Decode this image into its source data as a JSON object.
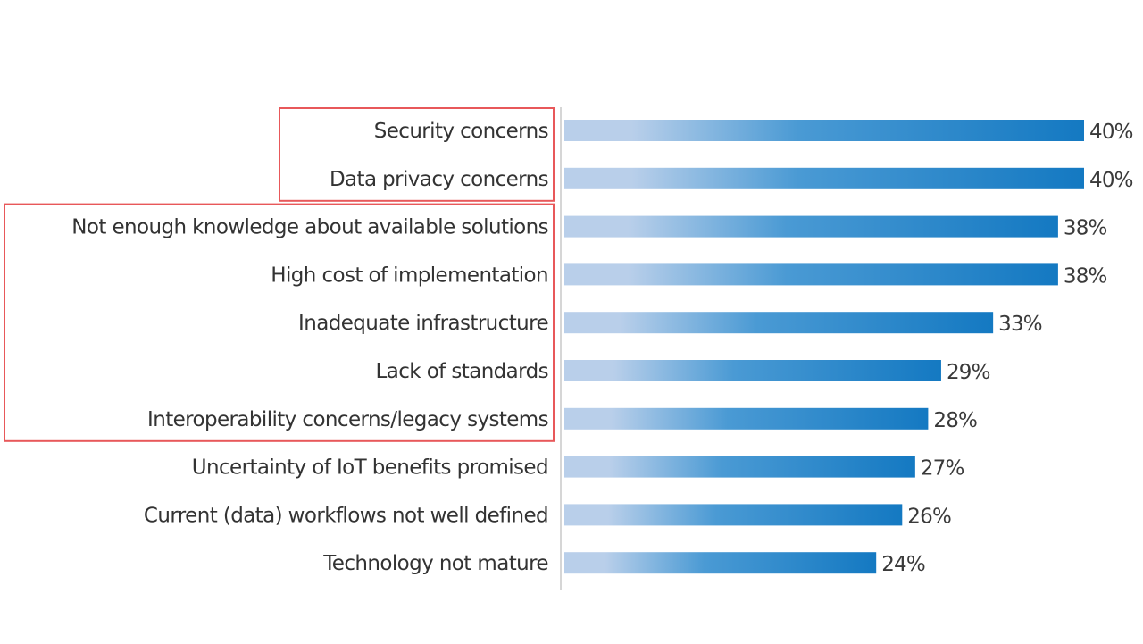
{
  "chart_data": {
    "type": "bar",
    "orientation": "horizontal",
    "title": "",
    "xlabel": "",
    "ylabel": "",
    "xlim": [
      0,
      40
    ],
    "grid": false,
    "legend": "none",
    "value_format": "percent",
    "categories": [
      "Security concerns",
      "Data privacy concerns",
      "Not enough knowledge about available solutions",
      "High cost of implementation",
      "Inadequate infrastructure",
      "Lack of standards",
      "Interoperability concerns/legacy systems",
      "Uncertainty of IoT benefits promised",
      "Current (data) workflows not well defined",
      "Technology not mature"
    ],
    "values": [
      40,
      40,
      38,
      38,
      33,
      29,
      28,
      27,
      26,
      24
    ],
    "value_labels": [
      "40%",
      "40%",
      "38%",
      "38%",
      "33%",
      "29%",
      "28%",
      "27%",
      "26%",
      "24%"
    ],
    "annotations": [
      {
        "type": "highlight-box",
        "covers_categories": [
          "Security concerns",
          "Data privacy concerns"
        ],
        "color": "#e8585a"
      },
      {
        "type": "highlight-box",
        "covers_categories": [
          "Not enough knowledge about available solutions",
          "High cost of implementation",
          "Inadequate infrastructure",
          "Lack of standards",
          "Interoperability concerns/legacy systems"
        ],
        "color": "#e8585a"
      }
    ]
  },
  "colors": {
    "bar_gradient_start": "#b9cfea",
    "bar_gradient_mid": "#4a9ad4",
    "bar_gradient_end": "#1479c2",
    "axis": "#d6d6d6",
    "text": "#333333",
    "highlight": "#e8585a"
  }
}
